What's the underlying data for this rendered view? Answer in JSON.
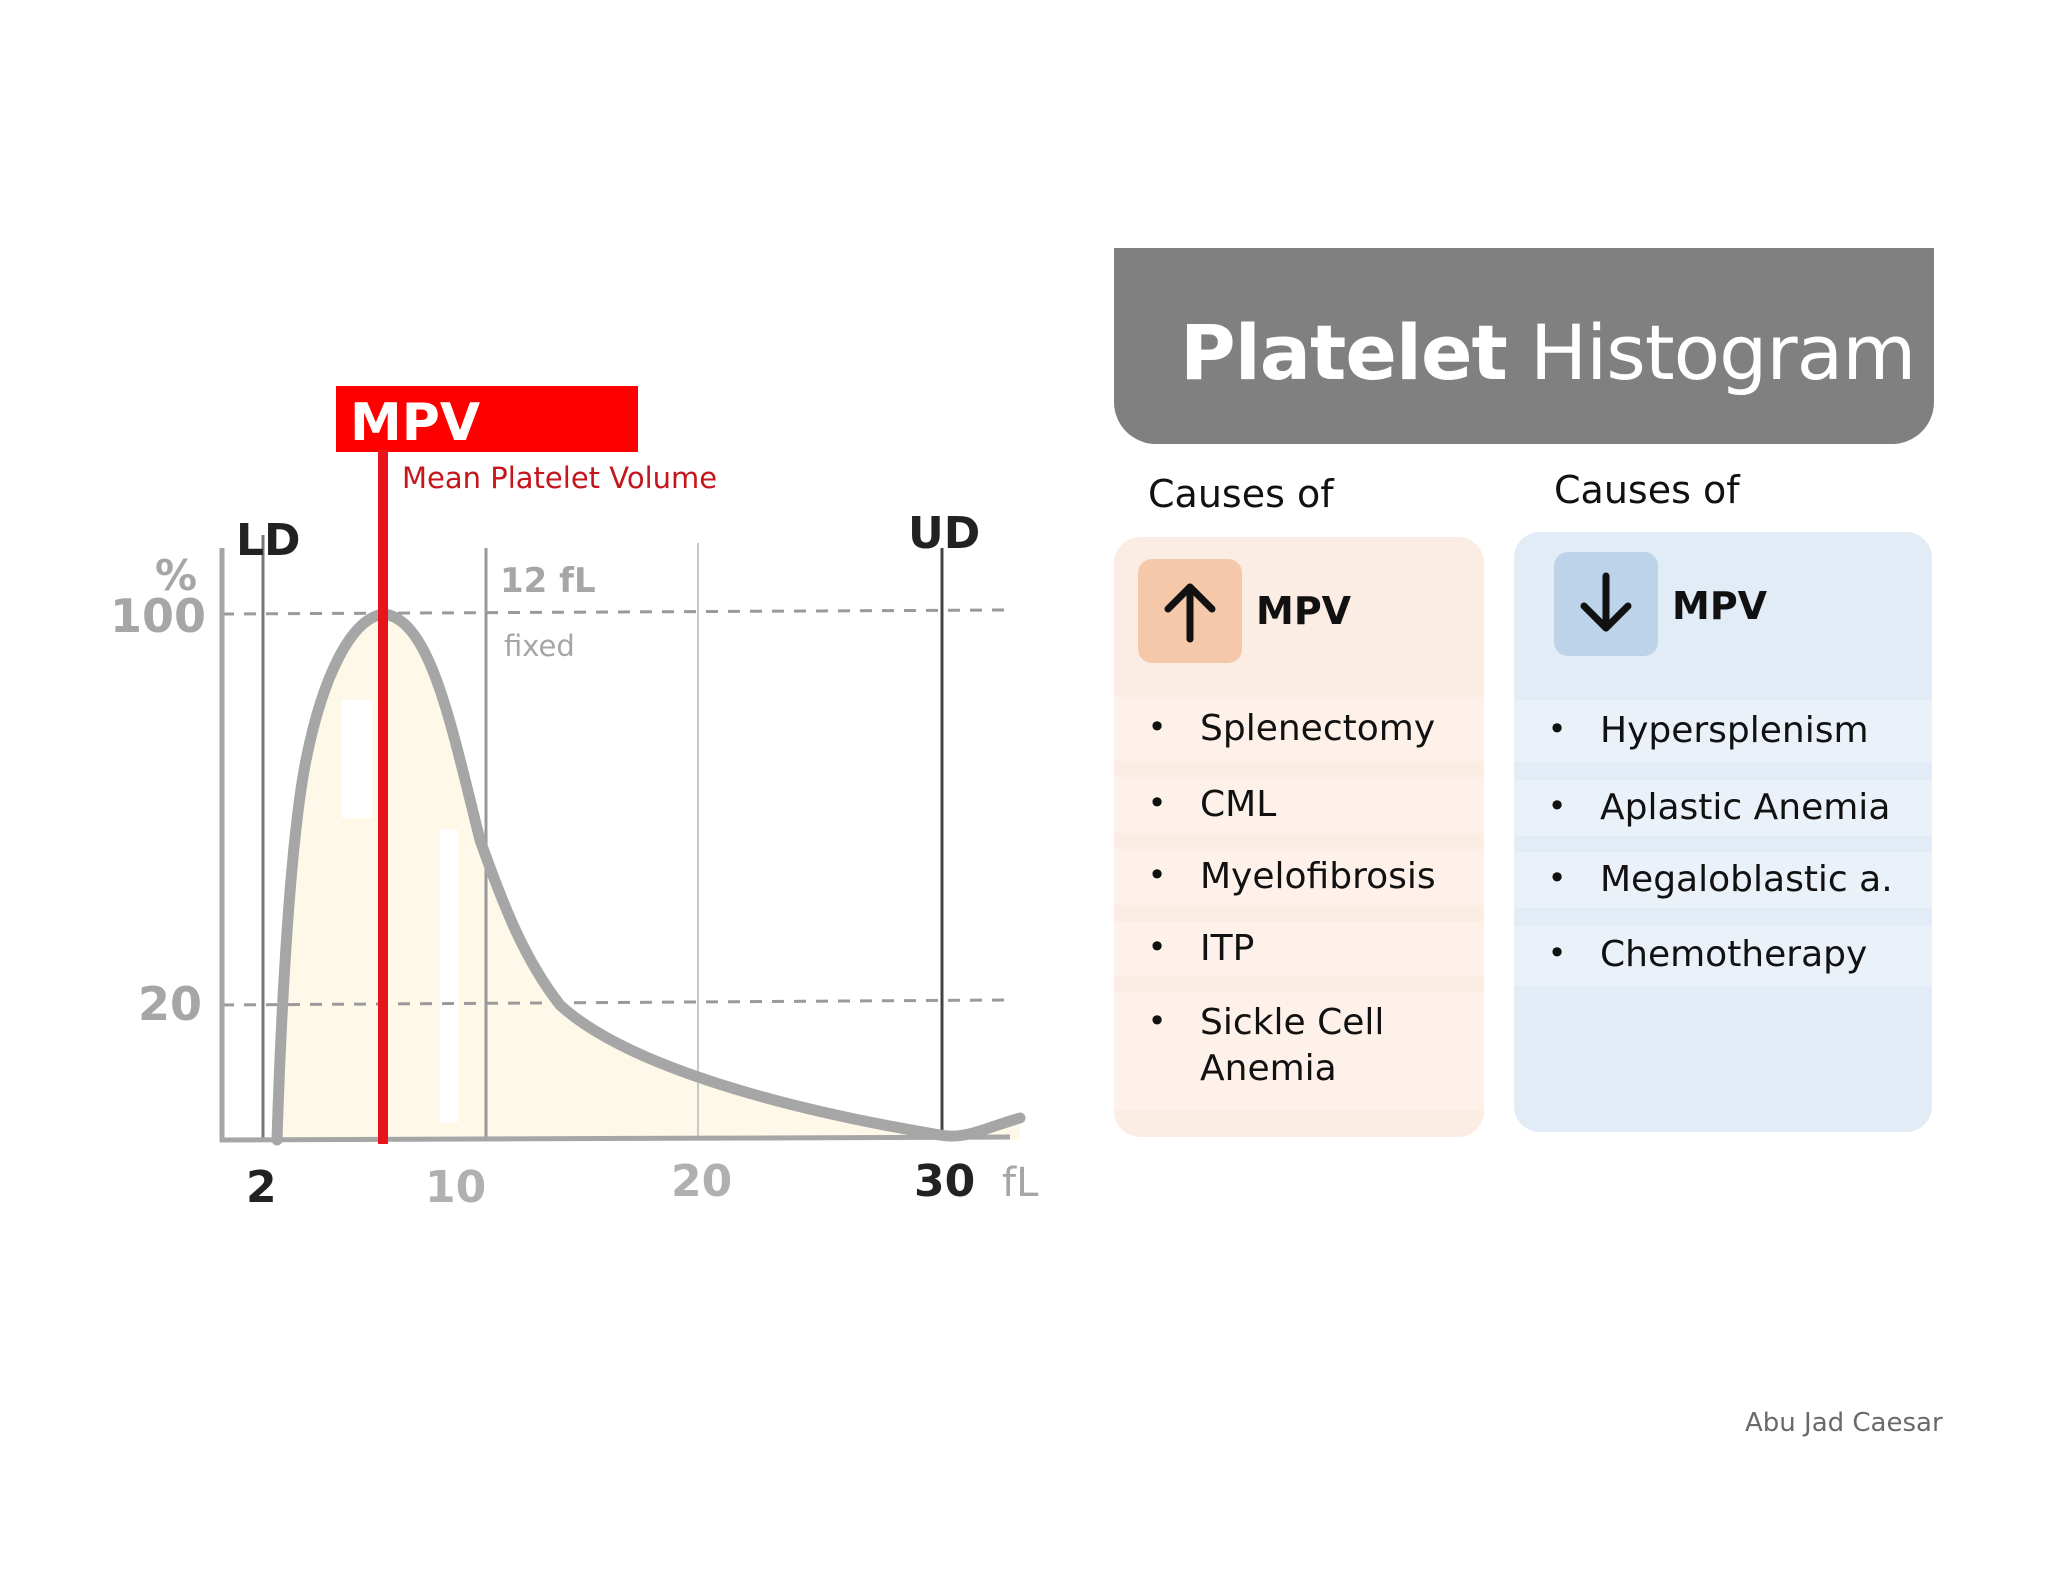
{
  "title": {
    "strong": "Platelet",
    "light": "Histogram"
  },
  "diagram": {
    "mpv_badge": "MPV",
    "mpv_caption": "Mean Platelet Volume",
    "ld_label": "LD",
    "ud_label": "UD",
    "y_unit": "%",
    "y_ticks": [
      "100",
      "20"
    ],
    "x_ticks": [
      "2",
      "10",
      "20",
      "30"
    ],
    "x_unit": "fL",
    "fixed_value": "12 fL",
    "fixed_label": "fixed"
  },
  "increased": {
    "heading": "Causes of",
    "arrow_icon": "arrow-up-icon",
    "label": "MPV",
    "items": [
      "Splenectomy",
      "CML",
      "Myelofibrosis",
      "ITP",
      "Sickle Cell\nAnemia"
    ]
  },
  "decreased": {
    "heading": "Causes of",
    "arrow_icon": "arrow-down-icon",
    "label": "MPV",
    "items": [
      "Hypersplenism",
      "Aplastic Anemia",
      "Megaloblastic a.",
      "Chemotherapy"
    ]
  },
  "credit": "Abu Jad Caesar",
  "colors": {
    "title_bar": "#808080",
    "mpv_red": "#e8141b",
    "increase_panel": "#fbece4",
    "increase_icon_bg": "#f6c8aa",
    "decrease_panel": "#e2ecf6",
    "decrease_icon_bg": "#bcd3ea",
    "curve": "#a6a6a6",
    "curve_fill": "#fdf8e8"
  }
}
